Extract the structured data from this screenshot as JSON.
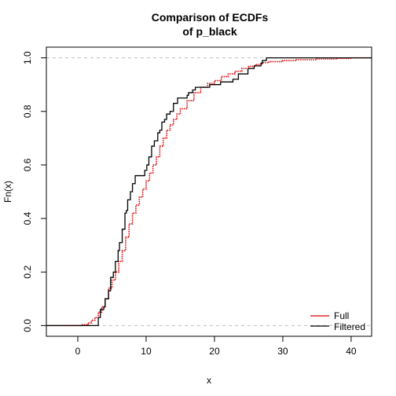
{
  "chart_data": {
    "type": "line",
    "title_lines": [
      "Comparison of ECDFs",
      "of p_black"
    ],
    "xlabel": "x",
    "ylabel": "Fn(x)",
    "xlim": [
      -4.6,
      43
    ],
    "ylim": [
      -0.04,
      1.04
    ],
    "x_ticks": [
      0,
      10,
      20,
      30,
      40
    ],
    "y_ticks": [
      0.0,
      0.2,
      0.4,
      0.6,
      0.8,
      1.0
    ],
    "x_tick_labels": [
      "0",
      "10",
      "20",
      "30",
      "40"
    ],
    "y_tick_labels": [
      "0.0",
      "0.2",
      "0.4",
      "0.6",
      "0.8",
      "1.0"
    ],
    "reference_lines": [
      0,
      1
    ],
    "reference_line_color": "#bebebe",
    "legend": {
      "position": "bottom-right",
      "items": [
        "Full",
        "Filtered"
      ]
    },
    "series": [
      {
        "name": "Full",
        "color": "#dd0000",
        "style": "dotted-step",
        "points": [
          [
            -4.6,
            0.0
          ],
          [
            0.5,
            0.003
          ],
          [
            1.5,
            0.01
          ],
          [
            2.0,
            0.02
          ],
          [
            2.5,
            0.03
          ],
          [
            3.0,
            0.05
          ],
          [
            3.5,
            0.07
          ],
          [
            4.0,
            0.1
          ],
          [
            4.5,
            0.14
          ],
          [
            5.0,
            0.17
          ],
          [
            5.5,
            0.2
          ],
          [
            6.0,
            0.24
          ],
          [
            6.5,
            0.28
          ],
          [
            7.0,
            0.33
          ],
          [
            7.5,
            0.38
          ],
          [
            8.0,
            0.42
          ],
          [
            8.5,
            0.45
          ],
          [
            9.0,
            0.48
          ],
          [
            9.5,
            0.51
          ],
          [
            10.0,
            0.54
          ],
          [
            10.5,
            0.57
          ],
          [
            11.0,
            0.6
          ],
          [
            11.5,
            0.63
          ],
          [
            12.0,
            0.67
          ],
          [
            12.5,
            0.7
          ],
          [
            13.0,
            0.73
          ],
          [
            13.5,
            0.75
          ],
          [
            14.0,
            0.77
          ],
          [
            14.5,
            0.79
          ],
          [
            15.0,
            0.81
          ],
          [
            16.0,
            0.84
          ],
          [
            17.0,
            0.87
          ],
          [
            18.0,
            0.89
          ],
          [
            19.0,
            0.905
          ],
          [
            20.0,
            0.915
          ],
          [
            21.0,
            0.93
          ],
          [
            22.0,
            0.94
          ],
          [
            23.0,
            0.95
          ],
          [
            24.0,
            0.96
          ],
          [
            25.0,
            0.968
          ],
          [
            26.0,
            0.975
          ],
          [
            27.0,
            0.982
          ],
          [
            28.0,
            0.986
          ],
          [
            30.0,
            0.99
          ],
          [
            32.0,
            0.993
          ],
          [
            35.0,
            0.996
          ],
          [
            38.0,
            0.998
          ],
          [
            40.0,
            1.0
          ],
          [
            43.0,
            1.0
          ]
        ]
      },
      {
        "name": "Filtered",
        "color": "#000000",
        "style": "step",
        "points": [
          [
            -4.6,
            0.0
          ],
          [
            2.8,
            0.0
          ],
          [
            3.0,
            0.03
          ],
          [
            3.3,
            0.06
          ],
          [
            3.8,
            0.07
          ],
          [
            4.0,
            0.1
          ],
          [
            4.5,
            0.13
          ],
          [
            4.8,
            0.18
          ],
          [
            5.2,
            0.2
          ],
          [
            5.5,
            0.24
          ],
          [
            5.9,
            0.28
          ],
          [
            6.1,
            0.31
          ],
          [
            6.5,
            0.36
          ],
          [
            6.9,
            0.42
          ],
          [
            7.1,
            0.43
          ],
          [
            7.3,
            0.47
          ],
          [
            7.7,
            0.5
          ],
          [
            8.0,
            0.53
          ],
          [
            8.4,
            0.56
          ],
          [
            9.8,
            0.58
          ],
          [
            10.1,
            0.6
          ],
          [
            10.4,
            0.63
          ],
          [
            10.8,
            0.67
          ],
          [
            11.2,
            0.69
          ],
          [
            11.7,
            0.72
          ],
          [
            12.0,
            0.73
          ],
          [
            12.3,
            0.76
          ],
          [
            12.7,
            0.77
          ],
          [
            13.0,
            0.79
          ],
          [
            13.5,
            0.8
          ],
          [
            14.0,
            0.83
          ],
          [
            14.6,
            0.85
          ],
          [
            16.0,
            0.86
          ],
          [
            16.2,
            0.87
          ],
          [
            16.8,
            0.88
          ],
          [
            17.2,
            0.89
          ],
          [
            19.3,
            0.9
          ],
          [
            20.9,
            0.91
          ],
          [
            22.7,
            0.92
          ],
          [
            23.5,
            0.94
          ],
          [
            24.9,
            0.96
          ],
          [
            25.8,
            0.97
          ],
          [
            26.8,
            0.98
          ],
          [
            27.0,
            0.99
          ],
          [
            27.6,
            1.0
          ],
          [
            43.0,
            1.0
          ]
        ]
      }
    ]
  }
}
